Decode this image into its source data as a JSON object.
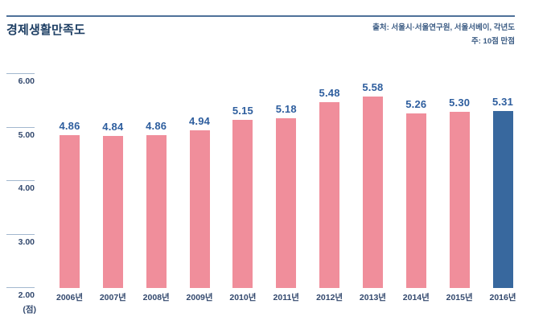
{
  "header": {
    "title": "경제생활만족도",
    "source_line1": "출처: 서울시·서울연구원, 서울서베이, 각년도",
    "source_line2": "주: 10점 만점"
  },
  "chart_data": {
    "type": "bar",
    "title": "경제생활만족도",
    "categories": [
      "2006년",
      "2007년",
      "2008년",
      "2009년",
      "2010년",
      "2011년",
      "2012년",
      "2013년",
      "2014년",
      "2015년",
      "2016년"
    ],
    "values": [
      4.86,
      4.84,
      4.86,
      4.94,
      5.15,
      5.18,
      5.48,
      5.58,
      5.26,
      5.3,
      5.31
    ],
    "value_labels": [
      "4.86",
      "4.84",
      "4.86",
      "4.94",
      "5.15",
      "5.18",
      "5.48",
      "5.58",
      "5.26",
      "5.30",
      "5.31"
    ],
    "xlabel": "",
    "ylabel": "",
    "unit_label": "(점)",
    "ylim": [
      2.0,
      6.0
    ],
    "yticks": [
      6.0,
      5.0,
      4.0,
      3.0,
      2.0
    ],
    "ytick_labels": [
      "6.00",
      "5.00",
      "4.00",
      "3.00",
      "2.00"
    ],
    "grid": false,
    "legend_position": "none",
    "highlight_index": 10,
    "colors": {
      "bar_default": "#F08E9B",
      "bar_highlight": "#38689E",
      "value_label": "#2E5E9E",
      "axis_label": "#33496E",
      "tick_line": "#A3B8CF",
      "title": "#1D3E63",
      "rule": "#4F7199",
      "source_text": "#3C5C84"
    }
  }
}
